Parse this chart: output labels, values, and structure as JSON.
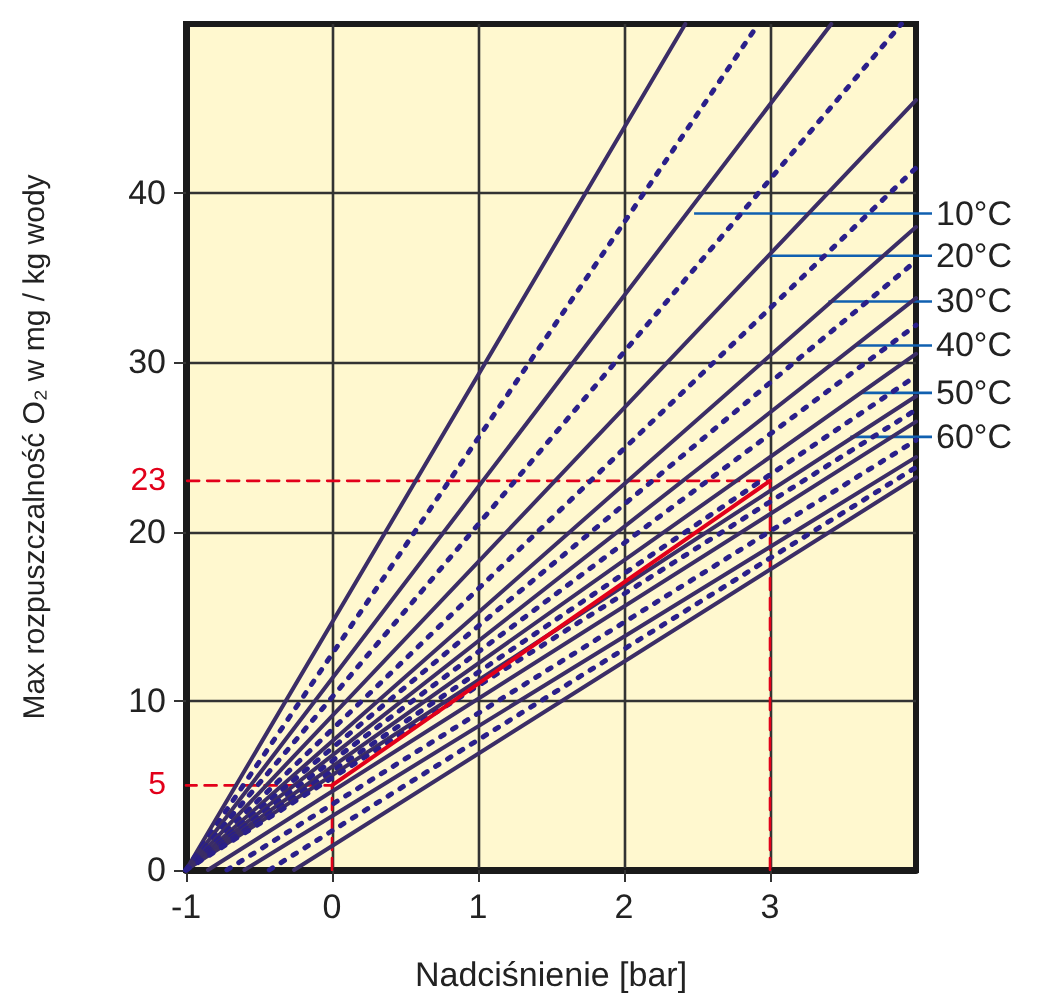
{
  "chart_data": {
    "type": "line",
    "xlabel": "Nadciśnienie [bar]",
    "ylabel": "Max rozpuszczalność O₂ w mg / kg wody",
    "xlim": [
      -1,
      4
    ],
    "xticks": [
      -1,
      0,
      1,
      2,
      3
    ],
    "ylim": [
      0,
      50
    ],
    "yticks": [
      0,
      10,
      20,
      30,
      40
    ],
    "grid": true,
    "series": [
      {
        "color": "#3b2d66",
        "line_style": "solid",
        "x": [
          -1,
          2.42
        ],
        "values": [
          0,
          50
        ]
      },
      {
        "color": "#2a1f8a",
        "line_style": "dotted",
        "x": [
          -1,
          2.92
        ],
        "values": [
          0,
          50
        ]
      },
      {
        "color": "#3b2d66",
        "line_style": "solid",
        "x": [
          -1,
          3.42
        ],
        "values": [
          0,
          50
        ]
      },
      {
        "color": "#2a1f8a",
        "line_style": "dotted",
        "x": [
          -1,
          3.9
        ],
        "values": [
          0,
          50
        ]
      },
      {
        "color": "#3b2d66",
        "line_style": "solid",
        "x": [
          -1,
          4
        ],
        "values": [
          0,
          45.5
        ]
      },
      {
        "color": "#2a1f8a",
        "line_style": "dotted",
        "x": [
          -1,
          4
        ],
        "values": [
          0,
          41.5
        ]
      },
      {
        "color": "#3b2d66",
        "line_style": "solid",
        "x": [
          -1,
          4
        ],
        "values": [
          0,
          38
        ]
      },
      {
        "color": "#2a1f8a",
        "line_style": "dotted",
        "x": [
          -1,
          4
        ],
        "values": [
          0,
          36
        ]
      },
      {
        "color": "#3b2d66",
        "line_style": "solid",
        "x": [
          -1,
          4
        ],
        "values": [
          0,
          33.8
        ]
      },
      {
        "color": "#2a1f8a",
        "line_style": "dotted",
        "x": [
          -1,
          4
        ],
        "values": [
          0,
          32.2
        ]
      },
      {
        "color": "#3b2d66",
        "line_style": "solid",
        "x": [
          -1,
          4
        ],
        "values": [
          0,
          30.5
        ]
      },
      {
        "color": "#2a1f8a",
        "line_style": "dotted",
        "x": [
          -1,
          4
        ],
        "values": [
          0,
          29.2
        ]
      },
      {
        "color": "#3b2d66",
        "line_style": "solid",
        "x": [
          -1,
          4
        ],
        "values": [
          0,
          28
        ]
      },
      {
        "color": "#2a1f8a",
        "line_style": "dotted",
        "x": [
          -1,
          4
        ],
        "values": [
          0,
          27.2
        ]
      },
      {
        "color": "#3b2d66",
        "line_style": "solid",
        "x": [
          -0.85,
          4
        ],
        "values": [
          0,
          26.5
        ]
      },
      {
        "color": "#2a1f8a",
        "line_style": "dotted",
        "x": [
          -0.72,
          4
        ],
        "values": [
          0,
          25.4
        ]
      },
      {
        "color": "#3b2d66",
        "line_style": "solid",
        "x": [
          -0.6,
          4
        ],
        "values": [
          0,
          24.4
        ]
      },
      {
        "color": "#2a1f8a",
        "line_style": "dotted",
        "x": [
          -0.43,
          4
        ],
        "values": [
          0,
          23.8
        ]
      },
      {
        "color": "#3b2d66",
        "line_style": "solid",
        "x": [
          -0.26,
          4
        ],
        "values": [
          0,
          23.2
        ]
      },
      {
        "color": "#e2001a",
        "line_style": "dashed",
        "x": [
          3,
          3,
          -1
        ],
        "values": [
          0,
          23,
          23
        ]
      },
      {
        "color": "#e2001a",
        "line_style": "dashed",
        "x": [
          0,
          0,
          -1
        ],
        "values": [
          0,
          5,
          5
        ]
      },
      {
        "color": "#e2001a",
        "line_style": "solid",
        "x": [
          0,
          3
        ],
        "values": [
          5,
          23
        ]
      }
    ],
    "annotations": [
      {
        "text": "10°C",
        "x": 2.48,
        "y": 38.8
      },
      {
        "text": "20°C",
        "x": 3.0,
        "y": 36.3
      },
      {
        "text": "30°C",
        "x": 3.4,
        "y": 33.6
      },
      {
        "text": "40°C",
        "x": 3.59,
        "y": 31
      },
      {
        "text": "50°C",
        "x": 3.62,
        "y": 28.2
      },
      {
        "text": "60°C",
        "x": 3.55,
        "y": 25.6
      },
      {
        "text": "23",
        "x": -1,
        "y": 23
      },
      {
        "text": "5",
        "x": -1,
        "y": 5
      }
    ]
  }
}
